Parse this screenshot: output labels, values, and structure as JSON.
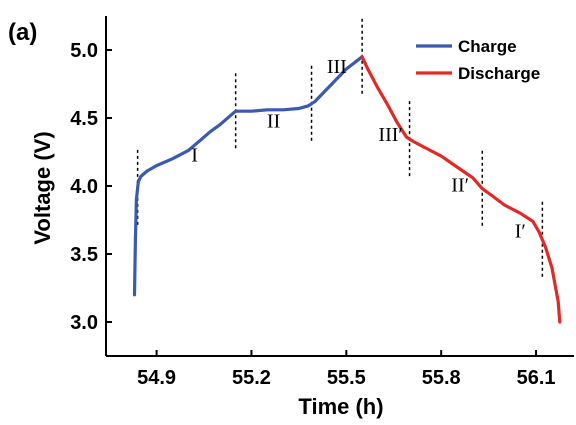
{
  "panel_label": "(a)",
  "chart_data": {
    "type": "line",
    "xlabel": "Time (h)",
    "ylabel": "Voltage (V)",
    "xlim": [
      54.74,
      56.22
    ],
    "ylim": [
      2.75,
      5.25
    ],
    "x_ticks": [
      54.9,
      55.2,
      55.5,
      55.8,
      56.1
    ],
    "x_tick_labels": [
      "54.9",
      "55.2",
      "55.5",
      "55.8",
      "56.1"
    ],
    "y_ticks": [
      3.0,
      3.5,
      4.0,
      4.5,
      5.0
    ],
    "y_tick_labels": [
      "3.0",
      "3.5",
      "4.0",
      "4.5",
      "5.0"
    ],
    "legend_position": "top-right",
    "series": [
      {
        "name": "Charge",
        "color": "#3a5ab0",
        "x": [
          54.83,
          54.833,
          54.836,
          54.842,
          54.85,
          54.87,
          54.9,
          54.95,
          55.0,
          55.04,
          55.07,
          55.1,
          55.13,
          55.15,
          55.2,
          55.25,
          55.3,
          55.35,
          55.38,
          55.4,
          55.45,
          55.5,
          55.55
        ],
        "values": [
          3.2,
          3.6,
          3.9,
          4.03,
          4.07,
          4.11,
          4.15,
          4.2,
          4.26,
          4.34,
          4.4,
          4.45,
          4.51,
          4.55,
          4.55,
          4.56,
          4.56,
          4.57,
          4.59,
          4.62,
          4.74,
          4.86,
          4.95
        ]
      },
      {
        "name": "Discharge",
        "color": "#e02a27",
        "x": [
          55.55,
          55.57,
          55.6,
          55.63,
          55.66,
          55.69,
          55.71,
          55.75,
          55.8,
          55.85,
          55.9,
          55.93,
          55.96,
          56.0,
          56.05,
          56.09,
          56.11,
          56.13,
          56.15,
          56.17,
          56.175
        ],
        "values": [
          4.95,
          4.85,
          4.72,
          4.6,
          4.47,
          4.36,
          4.33,
          4.28,
          4.22,
          4.14,
          4.06,
          3.98,
          3.93,
          3.86,
          3.8,
          3.74,
          3.66,
          3.55,
          3.4,
          3.15,
          3.0
        ]
      }
    ],
    "dividers_x": [
      54.84,
      55.15,
      55.39,
      55.55,
      55.7,
      55.93,
      56.12
    ],
    "stage_labels": [
      {
        "text": "I",
        "x": 55.02,
        "y": 4.18
      },
      {
        "text": "II",
        "x": 55.27,
        "y": 4.43
      },
      {
        "text": "III",
        "x": 55.47,
        "y": 4.83
      },
      {
        "text": "III′",
        "x": 55.64,
        "y": 4.33
      },
      {
        "text": "II′",
        "x": 55.86,
        "y": 3.96
      },
      {
        "text": "I′",
        "x": 56.05,
        "y": 3.62
      }
    ]
  }
}
